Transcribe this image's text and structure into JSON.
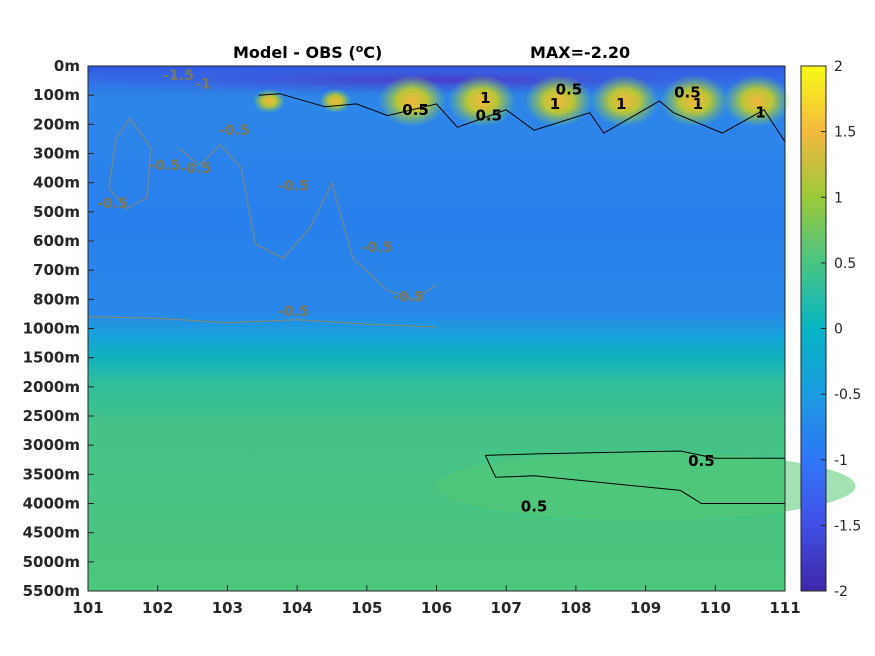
{
  "chart_data": {
    "type": "heatmap",
    "title": "Model - OBS (",
    "title_unit_sup": "o",
    "title_unit": "C)",
    "max_label": "MAX=-2.20",
    "x_ticks": [
      "101",
      "102",
      "103",
      "104",
      "105",
      "106",
      "107",
      "108",
      "109",
      "110",
      "111"
    ],
    "y_ticks": [
      "0m",
      "100m",
      "200m",
      "300m",
      "400m",
      "500m",
      "600m",
      "700m",
      "800m",
      "1000m",
      "1500m",
      "2000m",
      "2500m",
      "3000m",
      "3500m",
      "4000m",
      "4500m",
      "5000m",
      "5500m"
    ],
    "colorbar": {
      "min": -2,
      "max": 2,
      "ticks": [
        "2",
        "1.5",
        "1",
        "0.5",
        "0",
        "-0.5",
        "-1",
        "-1.5",
        "-2"
      ],
      "colormap": "parula"
    },
    "contour_labels": [
      {
        "text": "-1.5",
        "x": 102.3,
        "y_level": 0.3,
        "color": "grey"
      },
      {
        "text": "-1",
        "x": 102.65,
        "y_level": 0.6,
        "color": "grey"
      },
      {
        "text": "-0.5",
        "x": 103.1,
        "y_level": 2.2,
        "color": "grey"
      },
      {
        "text": "-0.5",
        "x": 102.1,
        "y_level": 3.4,
        "color": "grey"
      },
      {
        "text": "-0.5",
        "x": 102.55,
        "y_level": 3.5,
        "color": "grey"
      },
      {
        "text": "-0.5",
        "x": 101.35,
        "y_level": 4.7,
        "color": "grey"
      },
      {
        "text": "-0.5",
        "x": 103.95,
        "y_level": 4.1,
        "color": "grey"
      },
      {
        "text": "-0.5",
        "x": 105.15,
        "y_level": 6.2,
        "color": "grey"
      },
      {
        "text": "-0.5",
        "x": 105.6,
        "y_level": 7.9,
        "color": "grey"
      },
      {
        "text": "-0.5",
        "x": 103.95,
        "y_level": 8.4,
        "color": "grey"
      },
      {
        "text": "0.5",
        "x": 105.7,
        "y_level": 1.5,
        "color": "black"
      },
      {
        "text": "1",
        "x": 106.7,
        "y_level": 1.1,
        "color": "black"
      },
      {
        "text": "0.5",
        "x": 106.75,
        "y_level": 1.7,
        "color": "black"
      },
      {
        "text": "1",
        "x": 107.7,
        "y_level": 1.3,
        "color": "black"
      },
      {
        "text": "0.5",
        "x": 107.9,
        "y_level": 0.8,
        "color": "black"
      },
      {
        "text": "1",
        "x": 108.65,
        "y_level": 1.3,
        "color": "black"
      },
      {
        "text": "0.5",
        "x": 109.6,
        "y_level": 0.9,
        "color": "black"
      },
      {
        "text": "1",
        "x": 109.75,
        "y_level": 1.3,
        "color": "black"
      },
      {
        "text": "1",
        "x": 110.65,
        "y_level": 1.6,
        "color": "black"
      },
      {
        "text": "0.5",
        "x": 109.8,
        "y_level": 13.55,
        "color": "black"
      },
      {
        "text": "0.5",
        "x": 107.4,
        "y_level": 15.1,
        "color": "black"
      }
    ]
  }
}
